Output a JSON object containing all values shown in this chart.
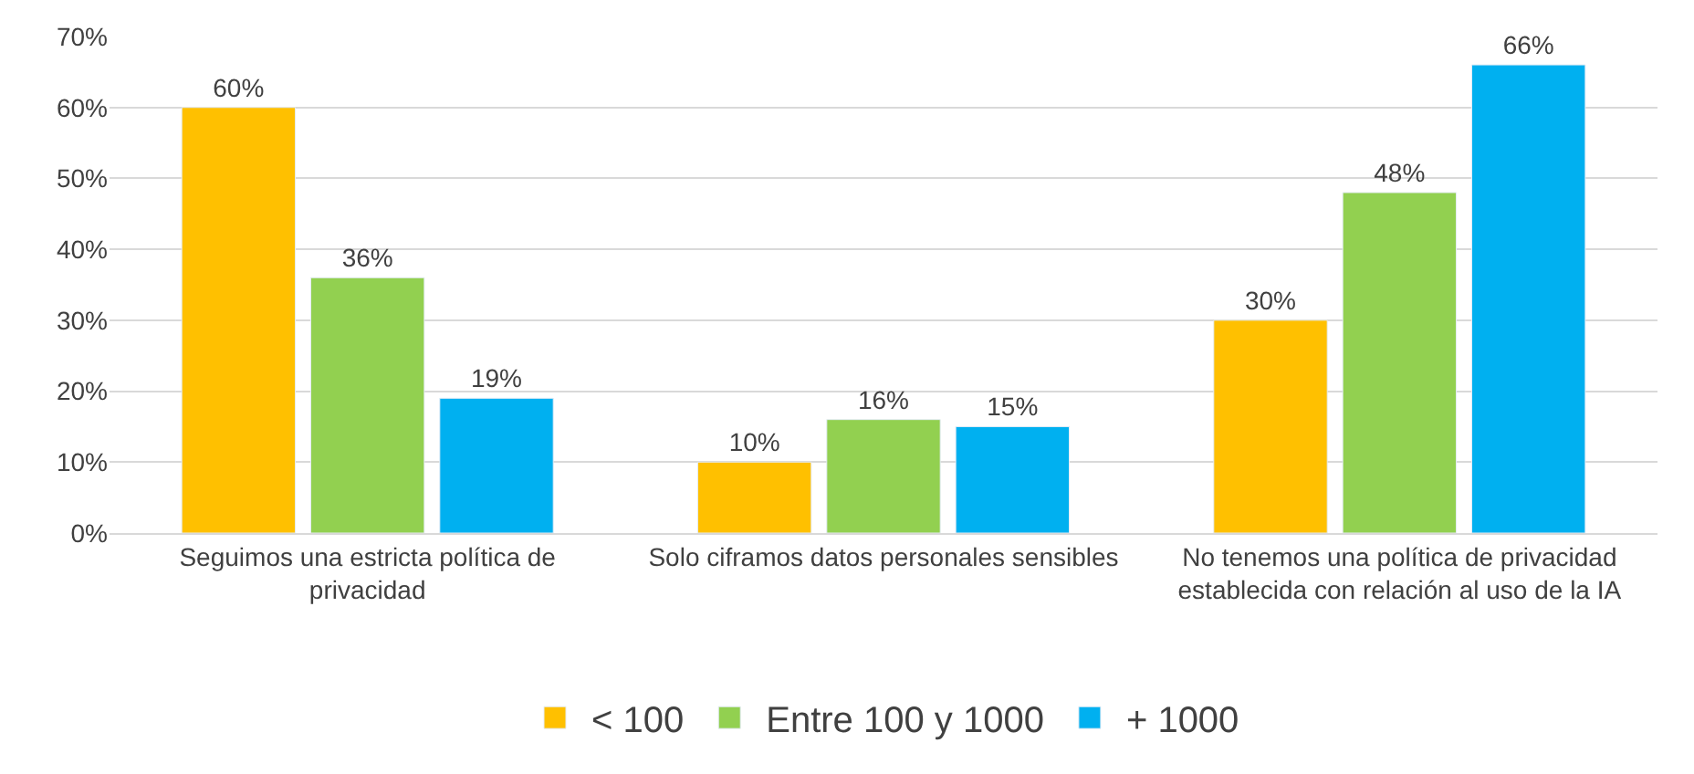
{
  "chart_data": {
    "type": "bar",
    "categories": [
      "Seguimos una estricta política de privacidad",
      "Solo ciframos datos personales sensibles",
      "No tenemos una política de privacidad establecida con relación al uso de la IA"
    ],
    "series": [
      {
        "name": "< 100",
        "color": "#ffc000",
        "values": [
          60,
          10,
          30
        ],
        "value_labels": [
          "60%",
          "10%",
          "30%"
        ]
      },
      {
        "name": "Entre 100 y 1000",
        "color": "#92d050",
        "values": [
          36,
          16,
          48
        ],
        "value_labels": [
          "36%",
          "16%",
          "48%"
        ]
      },
      {
        "name": "+ 1000",
        "color": "#00b0f0",
        "values": [
          19,
          15,
          66
        ],
        "value_labels": [
          "19%",
          "15%",
          "66%"
        ]
      }
    ],
    "ylim": [
      0,
      70
    ],
    "yticks": [
      {
        "value": 0,
        "label": "0%"
      },
      {
        "value": 10,
        "label": "10%"
      },
      {
        "value": 20,
        "label": "20%"
      },
      {
        "value": 30,
        "label": "30%"
      },
      {
        "value": 40,
        "label": "40%"
      },
      {
        "value": 50,
        "label": "50%"
      },
      {
        "value": 60,
        "label": "60%"
      },
      {
        "value": 70,
        "label": "70%"
      }
    ],
    "grid": "y",
    "legend": "bottom"
  }
}
